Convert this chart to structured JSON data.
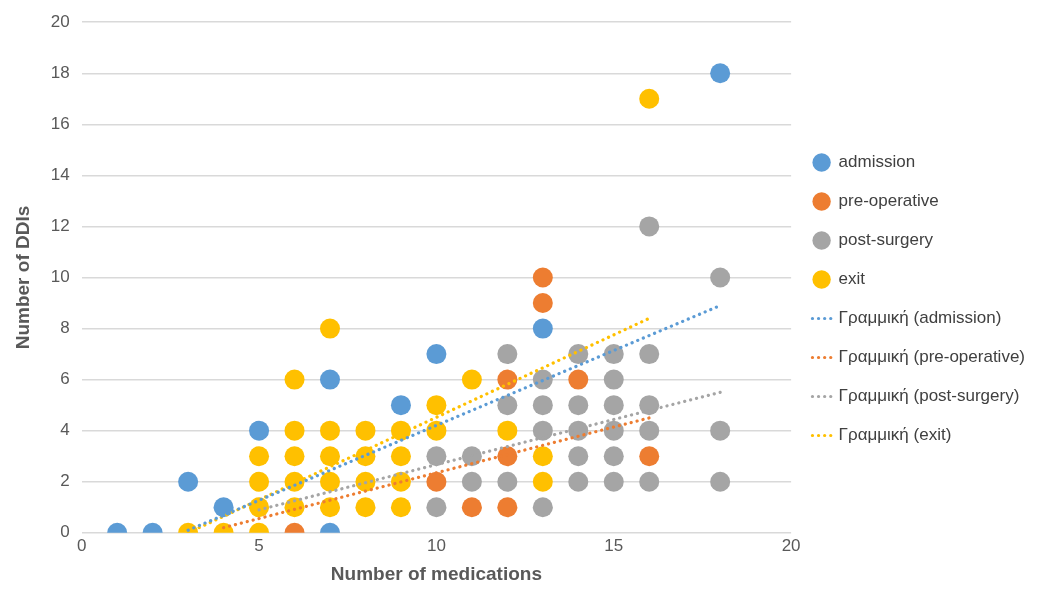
{
  "chart_data": {
    "type": "scatter",
    "xlabel": "Number of medications",
    "ylabel": "Number of DDIs",
    "xlim": [
      0,
      20
    ],
    "xticks": [
      0,
      5,
      10,
      15,
      20
    ],
    "ylim": [
      0,
      20
    ],
    "yticks": [
      0,
      2,
      4,
      6,
      8,
      10,
      12,
      14,
      16,
      18,
      20
    ],
    "grid": "y",
    "legend": "right",
    "marker": "circle",
    "series": [
      {
        "name": "admission",
        "type": "scatter",
        "color": "#5b9bd5",
        "x": [
          1,
          2,
          3,
          4,
          5,
          7,
          7,
          9,
          10,
          13,
          18
        ],
        "values": [
          0,
          0,
          2,
          1,
          4,
          6,
          0,
          5,
          7,
          8,
          18
        ]
      },
      {
        "name": "pre-operative",
        "type": "scatter",
        "color": "#ed7d31",
        "x": [
          6,
          10,
          11,
          12,
          12,
          12,
          13,
          13,
          14,
          16
        ],
        "values": [
          0,
          2,
          1,
          1,
          3,
          6,
          9,
          10,
          6,
          3
        ]
      },
      {
        "name": "post-surgery",
        "type": "scatter",
        "color": "#a5a5a5",
        "x": [
          10,
          10,
          11,
          11,
          12,
          12,
          12,
          13,
          13,
          13,
          13,
          14,
          14,
          14,
          14,
          14,
          15,
          15,
          15,
          15,
          15,
          15,
          16,
          16,
          16,
          16,
          16,
          18,
          18,
          18
        ],
        "values": [
          3,
          1,
          3,
          2,
          7,
          5,
          2,
          6,
          5,
          4,
          1,
          7,
          5,
          4,
          3,
          2,
          7,
          6,
          5,
          4,
          3,
          2,
          12,
          7,
          5,
          4,
          2,
          10,
          4,
          2
        ]
      },
      {
        "name": "exit",
        "type": "scatter",
        "color": "#ffc000",
        "x": [
          3,
          4,
          5,
          5,
          5,
          5,
          6,
          6,
          6,
          6,
          6,
          7,
          7,
          7,
          7,
          7,
          8,
          8,
          8,
          8,
          9,
          9,
          9,
          9,
          10,
          10,
          11,
          12,
          13,
          13,
          16
        ],
        "values": [
          0,
          0,
          0,
          1,
          2,
          3,
          1,
          2,
          3,
          4,
          6,
          1,
          2,
          3,
          4,
          8,
          1,
          2,
          3,
          4,
          1,
          2,
          3,
          4,
          4,
          5,
          6,
          4,
          2,
          3,
          17
        ]
      },
      {
        "name": "Γραμμική (admission)",
        "type": "line",
        "color": "#5b9bd5",
        "marker": "none",
        "line_style": "dotted",
        "x": [
          3,
          18
        ],
        "values": [
          0.1,
          8.9
        ]
      },
      {
        "name": "Γραμμική (pre-operative)",
        "type": "line",
        "color": "#ed7d31",
        "marker": "none",
        "line_style": "dotted",
        "x": [
          4,
          16
        ],
        "values": [
          0.2,
          4.5
        ]
      },
      {
        "name": "Γραμμική (post-surgery)",
        "type": "line",
        "color": "#a5a5a5",
        "marker": "none",
        "line_style": "dotted",
        "x": [
          5,
          18
        ],
        "values": [
          0.9,
          5.5
        ]
      },
      {
        "name": "Γραμμική (exit)",
        "type": "line",
        "color": "#ffc000",
        "marker": "none",
        "line_style": "dotted",
        "x": [
          3,
          16
        ],
        "values": [
          0,
          8.4
        ]
      }
    ]
  }
}
